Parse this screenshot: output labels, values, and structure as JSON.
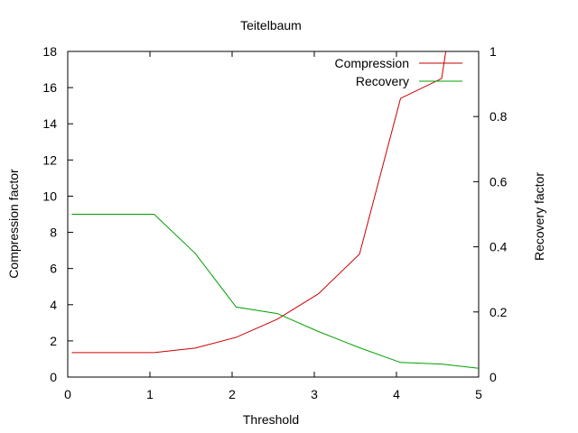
{
  "chart_data": {
    "type": "line",
    "title": "Teitelbaum",
    "xlabel": "Threshold",
    "ylabel": "Compression factor",
    "y2label": "Recovery factor",
    "xlim": [
      0,
      5
    ],
    "ylim": [
      0,
      18
    ],
    "y2lim": [
      0,
      1
    ],
    "xticks": [
      "0",
      "1",
      "2",
      "3",
      "4",
      "5"
    ],
    "yticks": [
      "0",
      "2",
      "4",
      "6",
      "8",
      "10",
      "12",
      "14",
      "16",
      "18"
    ],
    "y2ticks": [
      "0",
      "0.2",
      "0.4",
      "0.6",
      "0.8",
      "1"
    ],
    "legend_position": "top-right",
    "grid": false,
    "series": [
      {
        "name": "Compression",
        "axis": "left",
        "color": "#cc0000",
        "x": [
          0.05,
          1.05,
          1.55,
          2.05,
          2.55,
          3.05,
          3.55,
          4.05,
          4.55,
          4.6
        ],
        "y": [
          1.35,
          1.35,
          1.6,
          2.2,
          3.2,
          4.6,
          6.8,
          15.4,
          16.5,
          18.0
        ]
      },
      {
        "name": "Recovery",
        "axis": "right",
        "color": "#00a000",
        "x": [
          0.05,
          1.05,
          1.55,
          2.05,
          2.55,
          3.05,
          3.55,
          4.05,
          4.55,
          5.0
        ],
        "y": [
          0.5,
          0.5,
          0.38,
          0.215,
          0.195,
          0.14,
          0.09,
          0.045,
          0.04,
          0.027
        ]
      }
    ]
  }
}
